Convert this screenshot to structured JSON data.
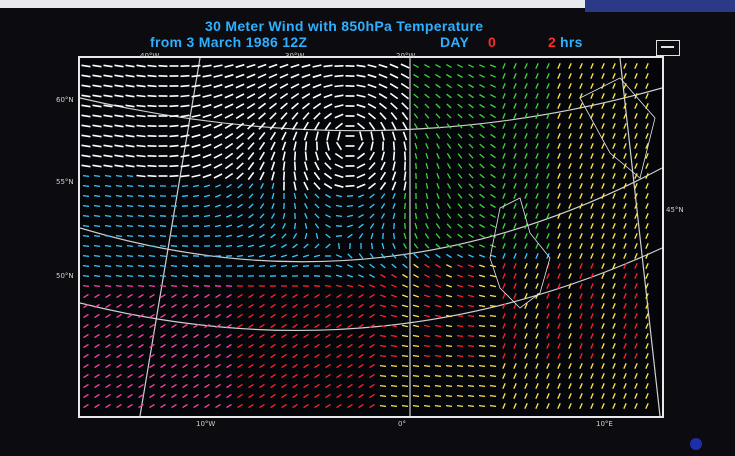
{
  "title": {
    "line1": "30 Meter Wind with 850hPa Temperature",
    "line2": "from 3 March 1986 12Z",
    "day_label": "DAY",
    "day_value": "0",
    "hrs_value": "2",
    "hrs_label": "hrs"
  },
  "colors": {
    "title": "#2fb0ff",
    "value_highlight": "#ff2a2a",
    "cold_white": "#ffffff",
    "cool_cyan": "#36c8ff",
    "mild_green": "#3fd23a",
    "warm_yellow": "#ffe54a",
    "hot_red": "#ff1f2e",
    "hot_pink": "#ff3fa8"
  },
  "latitude_labels": [
    "60°N",
    "55°N",
    "50°N",
    "45°N"
  ],
  "longitude_labels": [
    "40°W",
    "30°W",
    "20°W",
    "10°W",
    "0°",
    "10°E"
  ],
  "icons": {
    "scale_box": "wind-scale-box-icon",
    "corner_dot": "blue-dot-icon"
  }
}
